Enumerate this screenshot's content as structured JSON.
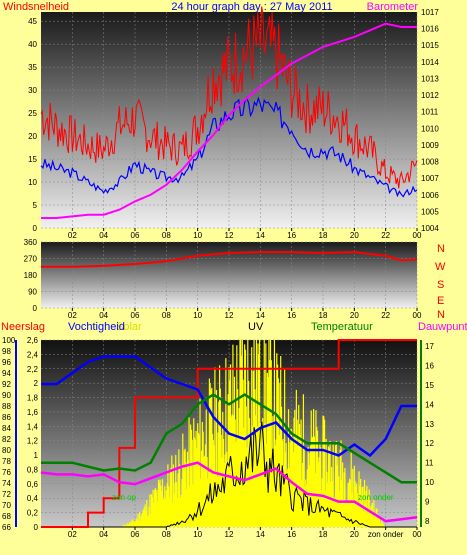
{
  "header": {
    "left": "Windsnelheid",
    "center": "24 hour graph day : 27 May 2011",
    "right": "Barometer"
  },
  "wind_compass": [
    "N",
    "W",
    "S",
    "E",
    "N"
  ],
  "bottom_labels": {
    "rain": "Neerslag",
    "humidity": "Vochtigheid",
    "solar": "Solar",
    "uv": "UV",
    "temperature": "Temperatuur",
    "dewpoint": "Dauwpunt",
    "sunrise": "zon op",
    "sunset": "zon onder",
    "sunset_axis": "zon onder"
  },
  "colors": {
    "wind_gust": "#ff0000",
    "wind_avg": "#0000ff",
    "barometer": "#ff00ff",
    "wind_dir": "#ff0000",
    "rain": "#ff0000",
    "humidity": "#0000ff",
    "solar": "#ffff00",
    "uv": "#000000",
    "temperature": "#008000",
    "dewpoint": "#ff00ff"
  },
  "chart_data": [
    {
      "type": "line",
      "title": "24 hour graph day : 27 May 2011",
      "x_ticks": [
        "02",
        "04",
        "06",
        "08",
        "10",
        "12",
        "14",
        "16",
        "18",
        "20",
        "22",
        "00"
      ],
      "y_left_label": "Windsnelheid",
      "y_left_ticks": [
        0,
        5,
        10,
        15,
        20,
        25,
        30,
        35,
        40,
        45
      ],
      "ylim_left": [
        0,
        47
      ],
      "y_right_label": "Barometer",
      "y_right_ticks": [
        1004,
        1005,
        1006,
        1007,
        1008,
        1009,
        1010,
        1011,
        1012,
        1013,
        1014,
        1015,
        1016,
        1017
      ],
      "ylim_right": [
        1004,
        1017
      ],
      "x": [
        0,
        1,
        2,
        3,
        4,
        5,
        6,
        7,
        8,
        9,
        10,
        11,
        12,
        13,
        14,
        15,
        16,
        17,
        18,
        19,
        20,
        21,
        22,
        23,
        24
      ],
      "series": [
        {
          "name": "Windsnelheid (gust)",
          "axis": "left",
          "values": [
            25,
            22,
            20,
            18,
            17,
            22,
            24,
            20,
            18,
            17,
            22,
            33,
            35,
            38,
            40,
            38,
            30,
            26,
            26,
            24,
            20,
            17,
            12,
            10,
            14
          ]
        },
        {
          "name": "Windsnelheid (avg)",
          "axis": "left",
          "values": [
            14,
            13,
            12,
            10,
            8,
            10,
            14,
            12,
            11,
            11,
            15,
            22,
            25,
            26,
            27,
            25,
            22,
            17,
            17,
            16,
            13,
            11,
            9,
            7,
            9
          ]
        },
        {
          "name": "Barometer",
          "axis": "right",
          "values": [
            1004.6,
            1004.6,
            1004.7,
            1004.8,
            1004.8,
            1005.1,
            1005.6,
            1006.0,
            1006.6,
            1007.5,
            1008.6,
            1009.6,
            1010.8,
            1011.7,
            1012.5,
            1013.2,
            1013.9,
            1014.4,
            1014.9,
            1015.2,
            1015.5,
            1015.9,
            1016.3,
            1016.1,
            1016.1
          ]
        }
      ]
    },
    {
      "type": "line",
      "x_ticks": [
        "02",
        "04",
        "06",
        "08",
        "10",
        "12",
        "14",
        "16",
        "18",
        "20",
        "22",
        "00"
      ],
      "y_ticks": [
        0,
        90,
        180,
        270,
        360
      ],
      "ylim": [
        0,
        360
      ],
      "x": [
        0,
        2,
        4,
        6,
        8,
        10,
        12,
        14,
        16,
        18,
        20,
        22,
        23,
        24
      ],
      "series": [
        {
          "name": "Windrichting",
          "values": [
            225,
            225,
            230,
            240,
            255,
            285,
            300,
            305,
            305,
            300,
            305,
            285,
            260,
            265
          ]
        }
      ]
    },
    {
      "type": "line",
      "x_ticks": [
        "02",
        "04",
        "06",
        "08",
        "10",
        "12",
        "14",
        "16",
        "18",
        "20",
        "zon onder",
        "00"
      ],
      "y_humidity_ticks": [
        66,
        68,
        70,
        72,
        74,
        76,
        78,
        80,
        82,
        84,
        86,
        88,
        90,
        92,
        94,
        96,
        98,
        100
      ],
      "ylim_humidity": [
        66,
        100
      ],
      "y_rain_ticks": [
        0,
        0.2,
        0.4,
        0.6,
        0.8,
        1,
        1.2,
        1.4,
        1.6,
        1.8,
        2,
        2.2,
        2.4,
        2.6
      ],
      "y_rain_tick_labels": [
        "0",
        "0,2",
        "0,4",
        "0,6",
        "0,8",
        "1",
        "1,2",
        "1,4",
        "1,6",
        "1,8",
        "2",
        "2,2",
        "2,4",
        "2,6"
      ],
      "ylim_rain": [
        0,
        2.6
      ],
      "y_temp_ticks": [
        8,
        9,
        10,
        11,
        12,
        13,
        14,
        15,
        16,
        17
      ],
      "ylim_temp": [
        7.7,
        17.3
      ],
      "x": [
        0,
        1,
        2,
        3,
        4,
        5,
        6,
        7,
        8,
        9,
        10,
        11,
        12,
        13,
        14,
        15,
        16,
        17,
        18,
        19,
        20,
        21,
        22,
        23,
        24
      ],
      "series": [
        {
          "name": "Neerslag",
          "axis": "rain",
          "values": [
            0,
            0,
            0,
            0.2,
            0.4,
            1.1,
            1.8,
            1.8,
            1.8,
            1.8,
            2.2,
            2.2,
            2.2,
            2.2,
            2.2,
            2.2,
            2.2,
            2.2,
            2.2,
            2.6,
            2.6,
            2.6,
            2.6,
            2.6,
            2.6
          ]
        },
        {
          "name": "Vochtigheid",
          "axis": "humidity",
          "values": [
            92,
            92,
            94,
            96,
            97,
            97,
            97,
            95,
            93,
            92,
            91,
            86,
            83,
            82,
            84,
            85,
            82,
            80,
            80,
            79,
            81,
            79,
            82,
            88,
            88
          ]
        },
        {
          "name": "Temperatuur",
          "axis": "temp",
          "values": [
            11.0,
            11.0,
            11.0,
            10.8,
            10.6,
            10.7,
            10.6,
            11.0,
            12.5,
            13.0,
            14.0,
            14.5,
            14.0,
            14.5,
            14.0,
            13.5,
            12.5,
            12.0,
            12.0,
            12.0,
            11.5,
            11.0,
            10.5,
            10.0,
            10.0
          ]
        },
        {
          "name": "Dauwpunt",
          "axis": "temp",
          "values": [
            10.5,
            10.4,
            10.4,
            10.3,
            10.4,
            10.0,
            9.9,
            10.2,
            10.5,
            10.8,
            11.0,
            10.5,
            10.3,
            10.1,
            10.4,
            10.7,
            10.0,
            9.4,
            9.3,
            9.0,
            9.0,
            8.5,
            8.0,
            8.1,
            8.2
          ]
        },
        {
          "name": "Solar",
          "axis": "humidity",
          "values": [
            66,
            66,
            66,
            66,
            66,
            66,
            67,
            70,
            73,
            76,
            80,
            83,
            86,
            90,
            92,
            86,
            82,
            80,
            78,
            76,
            74,
            70,
            66,
            66,
            66
          ]
        },
        {
          "name": "UV",
          "axis": "humidity",
          "values": [
            66,
            66,
            66,
            66,
            66,
            66,
            66,
            66,
            66,
            67,
            69,
            72,
            75,
            78,
            80,
            75,
            72,
            70,
            69,
            68,
            67,
            66,
            66,
            66,
            66
          ]
        }
      ]
    }
  ]
}
